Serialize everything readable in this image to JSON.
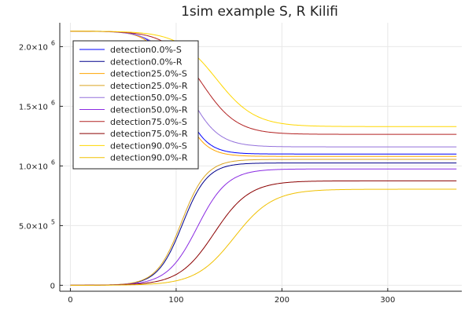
{
  "chart_data": {
    "type": "line",
    "title": "1sim example S, R Kilifi",
    "xlabel": "",
    "ylabel": "",
    "xlim": [
      -10,
      370
    ],
    "ylim": [
      -50000,
      2200000
    ],
    "x_ticks": [
      0,
      100,
      200,
      300
    ],
    "x_tick_labels": [
      "0",
      "100",
      "200",
      "300"
    ],
    "y_ticks": [
      0,
      500000,
      1000000,
      1500000,
      2000000
    ],
    "y_tick_labels": [
      {
        "mantissa": "0",
        "exp": ""
      },
      {
        "mantissa": "5.0×10",
        "exp": "5"
      },
      {
        "mantissa": "1.0×10",
        "exp": "6"
      },
      {
        "mantissa": "1.5×10",
        "exp": "6"
      },
      {
        "mantissa": "2.0×10",
        "exp": "6"
      }
    ],
    "grid": true,
    "legend_position": "top-left",
    "x_range": [
      0,
      365
    ],
    "series": [
      {
        "name": "detection0.0%-S",
        "color": "#0000ff",
        "kind": "S",
        "start": 2130000,
        "end": 1100000,
        "t_mid": 103,
        "k": 0.085
      },
      {
        "name": "detection0.0%-R",
        "color": "#00008b",
        "kind": "R",
        "start": 0,
        "end": 1025000,
        "t_mid": 106,
        "k": 0.085
      },
      {
        "name": "detection25.0%-S",
        "color": "#ffa500",
        "kind": "S",
        "start": 2130000,
        "end": 1080000,
        "t_mid": 101,
        "k": 0.085
      },
      {
        "name": "detection25.0%-R",
        "color": "#daa520",
        "kind": "R",
        "start": 0,
        "end": 1055000,
        "t_mid": 105,
        "k": 0.085
      },
      {
        "name": "detection50.0%-S",
        "color": "#9370db",
        "kind": "S",
        "start": 2130000,
        "end": 1160000,
        "t_mid": 110,
        "k": 0.07
      },
      {
        "name": "detection50.0%-R",
        "color": "#8a2be2",
        "kind": "R",
        "start": 0,
        "end": 975000,
        "t_mid": 120,
        "k": 0.07
      },
      {
        "name": "detection75.0%-S",
        "color": "#b22222",
        "kind": "S",
        "start": 2130000,
        "end": 1265000,
        "t_mid": 124,
        "k": 0.06
      },
      {
        "name": "detection75.0%-R",
        "color": "#8b0000",
        "kind": "R",
        "start": 0,
        "end": 875000,
        "t_mid": 136,
        "k": 0.06
      },
      {
        "name": "detection90.0%-S",
        "color": "#ffd700",
        "kind": "S",
        "start": 2130000,
        "end": 1330000,
        "t_mid": 138,
        "k": 0.055
      },
      {
        "name": "detection90.0%-R",
        "color": "#f0c000",
        "kind": "R",
        "start": 0,
        "end": 805000,
        "t_mid": 155,
        "k": 0.055
      }
    ]
  }
}
